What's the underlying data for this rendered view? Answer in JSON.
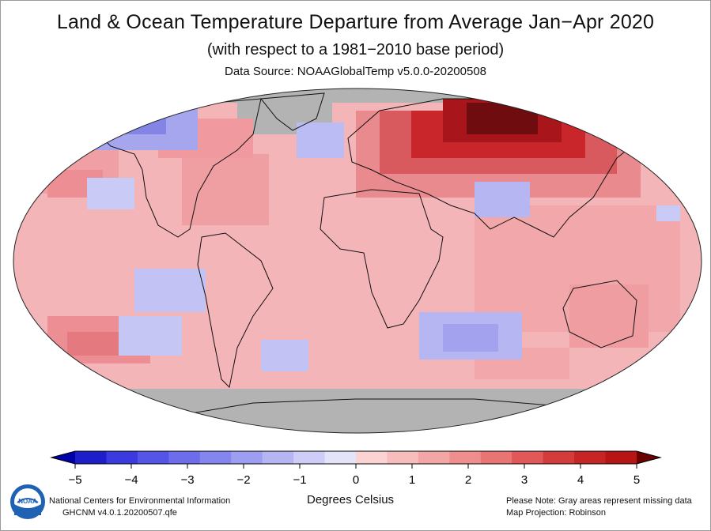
{
  "header": {
    "title": "Land & Ocean Temperature Departure from Average Jan−Apr 2020",
    "subtitle": "(with respect to a 1981−2010 base period)",
    "source": "Data Source: NOAAGlobalTemp v5.0.0-20200508"
  },
  "map": {
    "projection": "Robinson",
    "missing_color": "#b3b3b3",
    "ocean_base_color": "#f4b5b8",
    "coast_color": "#111111"
  },
  "legend": {
    "ticks": [
      "−5",
      "−4",
      "−3",
      "−2",
      "−1",
      "0",
      "1",
      "2",
      "3",
      "4",
      "5"
    ],
    "colors": [
      "#1d1dc9",
      "#3a3ade",
      "#5454e6",
      "#6d6dec",
      "#8585ef",
      "#9d9df1",
      "#b5b5f4",
      "#cdcdf7",
      "#e3e3fa",
      "#fbd3d3",
      "#f7bdbd",
      "#f3a6a6",
      "#ef8e8e",
      "#e87474",
      "#e05858",
      "#d43c3c",
      "#c62525",
      "#b51515"
    ],
    "end_low": "#0000a8",
    "end_high": "#6b0000",
    "units": "Degrees Celsius"
  },
  "footer": {
    "logo_text": "NOAA",
    "org": "National Centers for Environmental Information",
    "dataset": "GHCNM v4.0.1.20200507.qfe",
    "note": "Please Note: Gray areas represent missing data",
    "projection": "Map Projection: Robinson"
  }
}
